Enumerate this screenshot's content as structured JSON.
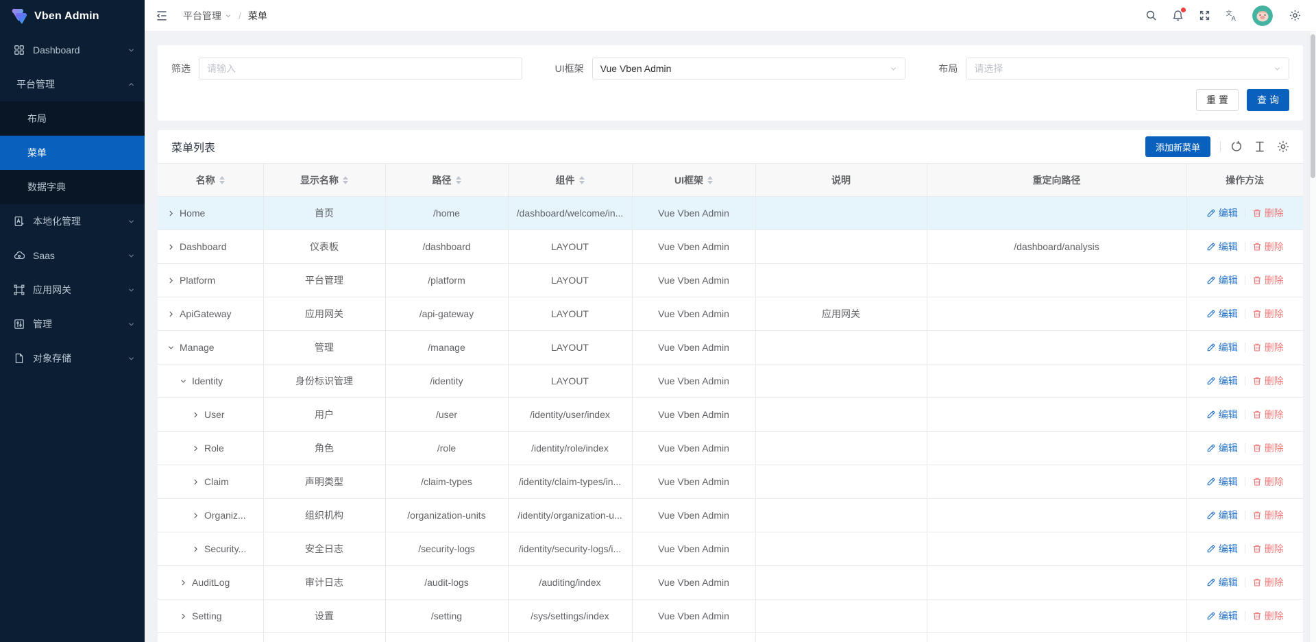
{
  "app": {
    "title": "Vben Admin"
  },
  "sidebar": {
    "items": [
      {
        "id": "dashboard",
        "label": "Dashboard",
        "icon": "dashboard-icon",
        "chevron": "down"
      },
      {
        "id": "platform",
        "label": "平台管理",
        "icon": "",
        "chevron": "up",
        "children": [
          {
            "id": "layout",
            "label": "布局",
            "active": false
          },
          {
            "id": "menu",
            "label": "菜单",
            "active": true
          },
          {
            "id": "data-dictionary",
            "label": "数据字典",
            "active": false
          }
        ]
      },
      {
        "id": "localization",
        "label": "本地化管理",
        "icon": "localization-icon",
        "chevron": "down"
      },
      {
        "id": "saas",
        "label": "Saas",
        "icon": "saas-icon",
        "chevron": "down"
      },
      {
        "id": "api-gateway",
        "label": "应用网关",
        "icon": "gateway-icon",
        "chevron": "down"
      },
      {
        "id": "manage",
        "label": "管理",
        "icon": "manage-icon",
        "chevron": "down"
      },
      {
        "id": "object-storage",
        "label": "对象存储",
        "icon": "storage-icon",
        "chevron": "down"
      }
    ]
  },
  "header": {
    "breadcrumb": {
      "items": [
        {
          "label": "平台管理"
        },
        {
          "label": "菜单"
        }
      ],
      "separator": "/"
    },
    "icons": [
      "search-icon",
      "notification-icon",
      "fullscreen-icon",
      "translate-icon"
    ],
    "notification_dot": true
  },
  "filter": {
    "fields": [
      {
        "label": "筛选",
        "type": "input",
        "value": "",
        "placeholder": "请输入"
      },
      {
        "label": "UI框架",
        "type": "select",
        "value": "Vue Vben Admin",
        "placeholder": ""
      },
      {
        "label": "布局",
        "type": "select",
        "value": "",
        "placeholder": "请选择"
      }
    ],
    "reset_label": "重置",
    "query_label": "查询"
  },
  "table": {
    "title": "菜单列表",
    "add_button_label": "添加新菜单",
    "toolbar_icons": [
      "refresh-icon",
      "row-height-icon",
      "settings-icon"
    ],
    "columns": [
      {
        "label": "名称",
        "sortable": true
      },
      {
        "label": "显示名称",
        "sortable": true
      },
      {
        "label": "路径",
        "sortable": true
      },
      {
        "label": "组件",
        "sortable": true
      },
      {
        "label": "UI框架",
        "sortable": true
      },
      {
        "label": "说明",
        "sortable": false
      },
      {
        "label": "重定向路径",
        "sortable": false
      },
      {
        "label": "操作方法",
        "sortable": false
      }
    ],
    "edit_label": "编辑",
    "delete_label": "删除",
    "rows": [
      {
        "level": 0,
        "expanded": false,
        "selected": true,
        "name": "Home",
        "display": "首页",
        "path": "/home",
        "component": "/dashboard/welcome/in...",
        "ui": "Vue Vben Admin",
        "desc": "",
        "redirect": ""
      },
      {
        "level": 0,
        "expanded": false,
        "selected": false,
        "name": "Dashboard",
        "display": "仪表板",
        "path": "/dashboard",
        "component": "LAYOUT",
        "ui": "Vue Vben Admin",
        "desc": "",
        "redirect": "/dashboard/analysis"
      },
      {
        "level": 0,
        "expanded": false,
        "selected": false,
        "name": "Platform",
        "display": "平台管理",
        "path": "/platform",
        "component": "LAYOUT",
        "ui": "Vue Vben Admin",
        "desc": "",
        "redirect": ""
      },
      {
        "level": 0,
        "expanded": false,
        "selected": false,
        "name": "ApiGateway",
        "display": "应用网关",
        "path": "/api-gateway",
        "component": "LAYOUT",
        "ui": "Vue Vben Admin",
        "desc": "应用网关",
        "redirect": ""
      },
      {
        "level": 0,
        "expanded": true,
        "selected": false,
        "name": "Manage",
        "display": "管理",
        "path": "/manage",
        "component": "LAYOUT",
        "ui": "Vue Vben Admin",
        "desc": "",
        "redirect": ""
      },
      {
        "level": 1,
        "expanded": true,
        "selected": false,
        "name": "Identity",
        "display": "身份标识管理",
        "path": "/identity",
        "component": "LAYOUT",
        "ui": "Vue Vben Admin",
        "desc": "",
        "redirect": ""
      },
      {
        "level": 2,
        "expanded": false,
        "selected": false,
        "name": "User",
        "display": "用户",
        "path": "/user",
        "component": "/identity/user/index",
        "ui": "Vue Vben Admin",
        "desc": "",
        "redirect": ""
      },
      {
        "level": 2,
        "expanded": false,
        "selected": false,
        "name": "Role",
        "display": "角色",
        "path": "/role",
        "component": "/identity/role/index",
        "ui": "Vue Vben Admin",
        "desc": "",
        "redirect": ""
      },
      {
        "level": 2,
        "expanded": false,
        "selected": false,
        "name": "Claim",
        "display": "声明类型",
        "path": "/claim-types",
        "component": "/identity/claim-types/in...",
        "ui": "Vue Vben Admin",
        "desc": "",
        "redirect": ""
      },
      {
        "level": 2,
        "expanded": false,
        "selected": false,
        "name": "Organiz...",
        "display": "组织机构",
        "path": "/organization-units",
        "component": "/identity/organization-u...",
        "ui": "Vue Vben Admin",
        "desc": "",
        "redirect": ""
      },
      {
        "level": 2,
        "expanded": false,
        "selected": false,
        "name": "Security...",
        "display": "安全日志",
        "path": "/security-logs",
        "component": "/identity/security-logs/i...",
        "ui": "Vue Vben Admin",
        "desc": "",
        "redirect": ""
      },
      {
        "level": 1,
        "expanded": false,
        "selected": false,
        "name": "AuditLog",
        "display": "审计日志",
        "path": "/audit-logs",
        "component": "/auditing/index",
        "ui": "Vue Vben Admin",
        "desc": "",
        "redirect": ""
      },
      {
        "level": 1,
        "expanded": false,
        "selected": false,
        "name": "Setting",
        "display": "设置",
        "path": "/setting",
        "component": "/sys/settings/index",
        "ui": "Vue Vben Admin",
        "desc": "",
        "redirect": ""
      }
    ]
  },
  "colors": {
    "primary": "#0960bd",
    "sidebar_bg": "#0b1e33",
    "submenu_bg": "#081626",
    "selected_row_bg": "#e6f4fc",
    "danger_link": "#ee7a7a",
    "edit_link": "#2472c8",
    "notification_dot": "#f23c3c"
  }
}
